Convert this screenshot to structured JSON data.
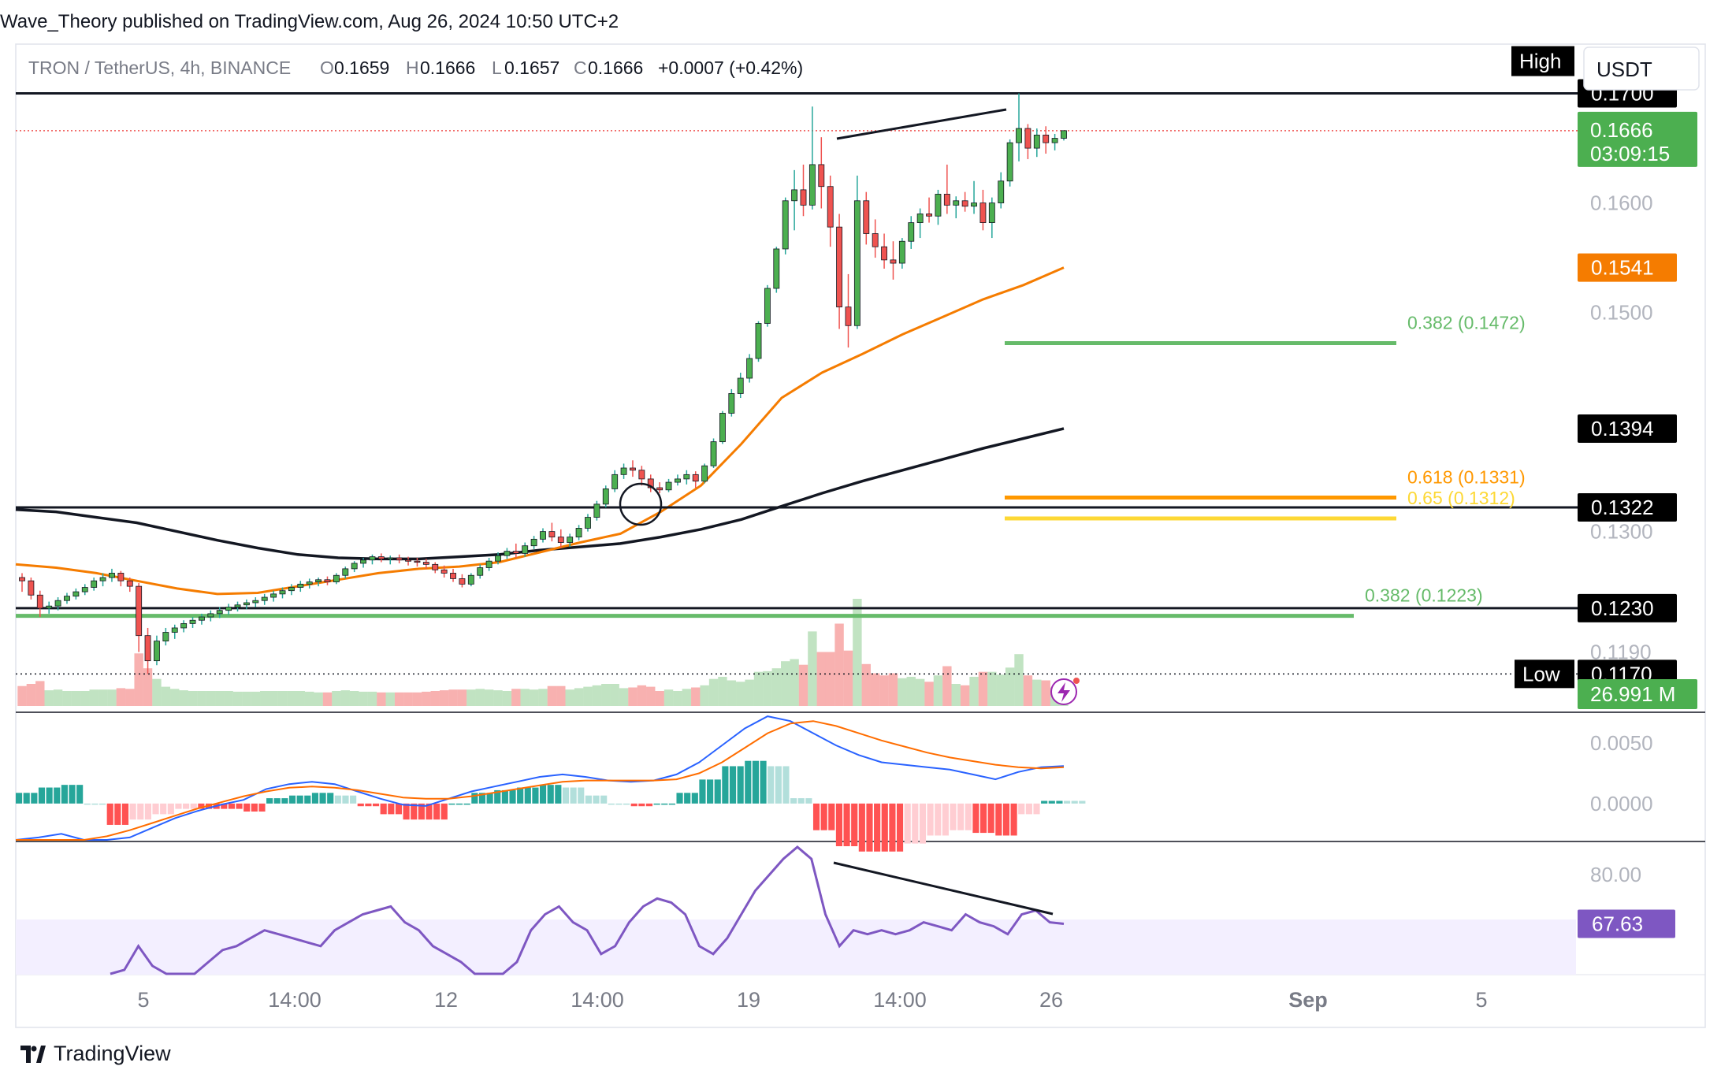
{
  "caption": "Wave_Theory published on TradingView.com, Aug 26, 2024 10:50 UTC+2",
  "symbol_line": {
    "symbol": "TRON / TetherUS, 4h, BINANCE",
    "o_label": "O",
    "o_value": "0.1659",
    "h_label": "H",
    "h_value": "0.1666",
    "l_label": "L",
    "l_value": "0.1657",
    "c_label": "C",
    "c_value": "0.1666",
    "change": "+0.0007 (+0.42%)"
  },
  "currency_button": "USDT",
  "brand": "TradingView",
  "colors": {
    "up": "#26a69a",
    "down": "#ef5350",
    "candle_up": "#4caf50",
    "ema_orange": "#f57c00",
    "ema_black": "#131722",
    "macd_line": "#2962ff",
    "signal_line": "#ff6d00",
    "rsi_line": "#7e57c2",
    "fib_green": "#66bb6a",
    "fib_orange": "#ff9800",
    "fib_yellow": "#ffeb3b"
  },
  "chart_data": [
    {
      "type": "candlestick",
      "title": "TRON / TetherUS, 4h, BINANCE",
      "x_ticks": [
        "5",
        "14:00",
        "12",
        "14:00",
        "19",
        "14:00",
        "26",
        "Sep",
        "5"
      ],
      "y_ticks": [
        "0.1600",
        "0.1500",
        "0.1300",
        "0.1190"
      ],
      "ylim": [
        0.1135,
        0.1745
      ],
      "candles": [
        [
          0.1258,
          0.1262,
          0.1245,
          0.1255
        ],
        [
          0.1255,
          0.1258,
          0.1238,
          0.1242
        ],
        [
          0.1242,
          0.1246,
          0.1222,
          0.123
        ],
        [
          0.123,
          0.1236,
          0.1225,
          0.1232
        ],
        [
          0.1232,
          0.124,
          0.1228,
          0.1237
        ],
        [
          0.1237,
          0.1244,
          0.1234,
          0.1241
        ],
        [
          0.1241,
          0.1248,
          0.1238,
          0.1245
        ],
        [
          0.1245,
          0.1252,
          0.1242,
          0.1249
        ],
        [
          0.1249,
          0.1258,
          0.1246,
          0.1255
        ],
        [
          0.1255,
          0.1262,
          0.125,
          0.1258
        ],
        [
          0.1258,
          0.1266,
          0.1254,
          0.1262
        ],
        [
          0.1262,
          0.1264,
          0.125,
          0.1255
        ],
        [
          0.1255,
          0.1258,
          0.1245,
          0.125
        ],
        [
          0.125,
          0.1253,
          0.119,
          0.1205
        ],
        [
          0.1205,
          0.1212,
          0.117,
          0.1182
        ],
        [
          0.1182,
          0.1205,
          0.1178,
          0.12
        ],
        [
          0.12,
          0.1212,
          0.1196,
          0.1208
        ],
        [
          0.1208,
          0.1215,
          0.1202,
          0.1212
        ],
        [
          0.1212,
          0.1219,
          0.1208,
          0.1216
        ],
        [
          0.1216,
          0.1222,
          0.1212,
          0.1219
        ],
        [
          0.1219,
          0.1225,
          0.1215,
          0.1222
        ],
        [
          0.1222,
          0.1228,
          0.1218,
          0.1225
        ],
        [
          0.1225,
          0.1231,
          0.1221,
          0.1228
        ],
        [
          0.1228,
          0.1234,
          0.1224,
          0.1231
        ],
        [
          0.1231,
          0.1236,
          0.1227,
          0.1233
        ],
        [
          0.1233,
          0.1238,
          0.1229,
          0.1235
        ],
        [
          0.1235,
          0.124,
          0.1231,
          0.1237
        ],
        [
          0.1237,
          0.1243,
          0.1233,
          0.124
        ],
        [
          0.124,
          0.1246,
          0.1236,
          0.1243
        ],
        [
          0.1243,
          0.1249,
          0.1239,
          0.1246
        ],
        [
          0.1246,
          0.1252,
          0.1242,
          0.1249
        ],
        [
          0.1249,
          0.1255,
          0.1245,
          0.1252
        ],
        [
          0.1252,
          0.1257,
          0.1248,
          0.1254
        ],
        [
          0.1254,
          0.1258,
          0.125,
          0.1256
        ],
        [
          0.1256,
          0.1259,
          0.1251,
          0.1254
        ],
        [
          0.1254,
          0.1262,
          0.1252,
          0.126
        ],
        [
          0.126,
          0.1268,
          0.1257,
          0.1266
        ],
        [
          0.1266,
          0.1273,
          0.1263,
          0.1271
        ],
        [
          0.1271,
          0.1276,
          0.1267,
          0.1274
        ],
        [
          0.1274,
          0.1279,
          0.127,
          0.1277
        ],
        [
          0.1277,
          0.128,
          0.1272,
          0.1275
        ],
        [
          0.1275,
          0.1278,
          0.127,
          0.1276
        ],
        [
          0.1276,
          0.1279,
          0.1271,
          0.1274
        ],
        [
          0.1274,
          0.1277,
          0.1269,
          0.1273
        ],
        [
          0.1273,
          0.1276,
          0.1268,
          0.1272
        ],
        [
          0.1272,
          0.1275,
          0.1266,
          0.127
        ],
        [
          0.127,
          0.1272,
          0.1262,
          0.1265
        ],
        [
          0.1265,
          0.1269,
          0.1258,
          0.1262
        ],
        [
          0.1262,
          0.1266,
          0.1254,
          0.1257
        ],
        [
          0.1257,
          0.1261,
          0.1249,
          0.1252
        ],
        [
          0.1252,
          0.1262,
          0.125,
          0.126
        ],
        [
          0.126,
          0.127,
          0.1257,
          0.1267
        ],
        [
          0.1267,
          0.1276,
          0.1264,
          0.1273
        ],
        [
          0.1273,
          0.1281,
          0.127,
          0.1278
        ],
        [
          0.1278,
          0.1285,
          0.1275,
          0.1282
        ],
        [
          0.1282,
          0.1289,
          0.1276,
          0.128
        ],
        [
          0.128,
          0.129,
          0.1277,
          0.1287
        ],
        [
          0.1287,
          0.1296,
          0.1284,
          0.1293
        ],
        [
          0.1293,
          0.1303,
          0.129,
          0.13
        ],
        [
          0.13,
          0.1308,
          0.1291,
          0.1295
        ],
        [
          0.1295,
          0.1302,
          0.1285,
          0.129
        ],
        [
          0.129,
          0.1298,
          0.1286,
          0.1295
        ],
        [
          0.1295,
          0.1306,
          0.1292,
          0.1303
        ],
        [
          0.1303,
          0.1316,
          0.13,
          0.1313
        ],
        [
          0.1313,
          0.1328,
          0.131,
          0.1325
        ],
        [
          0.1325,
          0.1342,
          0.1322,
          0.1339
        ],
        [
          0.1339,
          0.1356,
          0.1336,
          0.1352
        ],
        [
          0.1352,
          0.1362,
          0.1348,
          0.1358
        ],
        [
          0.1358,
          0.1365,
          0.135,
          0.1356
        ],
        [
          0.1356,
          0.136,
          0.1342,
          0.1348
        ],
        [
          0.1348,
          0.1352,
          0.1336,
          0.134
        ],
        [
          0.134,
          0.1345,
          0.1335,
          0.1338
        ],
        [
          0.1338,
          0.1348,
          0.1336,
          0.1345
        ],
        [
          0.1345,
          0.1352,
          0.1342,
          0.1348
        ],
        [
          0.1348,
          0.1356,
          0.1343,
          0.1352
        ],
        [
          0.1352,
          0.1355,
          0.134,
          0.1346
        ],
        [
          0.1346,
          0.1362,
          0.1344,
          0.136
        ],
        [
          0.136,
          0.1385,
          0.1358,
          0.1382
        ],
        [
          0.1382,
          0.141,
          0.138,
          0.1408
        ],
        [
          0.1408,
          0.143,
          0.1405,
          0.1426
        ],
        [
          0.1426,
          0.1445,
          0.1422,
          0.144
        ],
        [
          0.144,
          0.1462,
          0.1436,
          0.1458
        ],
        [
          0.1458,
          0.1492,
          0.1455,
          0.149
        ],
        [
          0.149,
          0.1525,
          0.1487,
          0.1522
        ],
        [
          0.1522,
          0.156,
          0.1518,
          0.1558
        ],
        [
          0.1558,
          0.1605,
          0.1553,
          0.1602
        ],
        [
          0.1602,
          0.163,
          0.1575,
          0.1612
        ],
        [
          0.1612,
          0.1635,
          0.1588,
          0.1598
        ],
        [
          0.1598,
          0.1688,
          0.1594,
          0.1635
        ],
        [
          0.1635,
          0.166,
          0.1595,
          0.1615
        ],
        [
          0.1615,
          0.1625,
          0.156,
          0.1578
        ],
        [
          0.1578,
          0.159,
          0.1485,
          0.1505
        ],
        [
          0.1505,
          0.1535,
          0.1468,
          0.1488
        ],
        [
          0.1488,
          0.1625,
          0.1485,
          0.1602
        ],
        [
          0.1602,
          0.161,
          0.1562,
          0.1572
        ],
        [
          0.1572,
          0.1585,
          0.155,
          0.156
        ],
        [
          0.156,
          0.1572,
          0.154,
          0.1548
        ],
        [
          0.1548,
          0.1565,
          0.153,
          0.1545
        ],
        [
          0.1545,
          0.1568,
          0.154,
          0.1565
        ],
        [
          0.1565,
          0.1588,
          0.1558,
          0.1582
        ],
        [
          0.1582,
          0.1595,
          0.1568,
          0.159
        ],
        [
          0.159,
          0.1605,
          0.1582,
          0.1588
        ],
        [
          0.1588,
          0.1612,
          0.158,
          0.1608
        ],
        [
          0.1608,
          0.1635,
          0.159,
          0.1598
        ],
        [
          0.1598,
          0.1606,
          0.1586,
          0.1602
        ],
        [
          0.1602,
          0.161,
          0.1592,
          0.1597
        ],
        [
          0.1597,
          0.162,
          0.159,
          0.16
        ],
        [
          0.16,
          0.1612,
          0.1575,
          0.1582
        ],
        [
          0.1582,
          0.1605,
          0.1568,
          0.16
        ],
        [
          0.16,
          0.1628,
          0.1595,
          0.162
        ],
        [
          0.162,
          0.1658,
          0.1615,
          0.1655
        ],
        [
          0.1655,
          0.17,
          0.1638,
          0.1668
        ],
        [
          0.1668,
          0.1672,
          0.164,
          0.165
        ],
        [
          0.165,
          0.1668,
          0.1642,
          0.1662
        ],
        [
          0.1662,
          0.167,
          0.1645,
          0.1655
        ],
        [
          0.1655,
          0.1663,
          0.1648,
          0.1659
        ],
        [
          0.1659,
          0.1666,
          0.1657,
          0.1666
        ]
      ],
      "ema_orange": [
        0.127,
        0.1267,
        0.1262,
        0.1255,
        0.1248,
        0.1243,
        0.1244,
        0.125,
        0.1256,
        0.1262,
        0.1266,
        0.1268,
        0.1272,
        0.1281,
        0.129,
        0.1298,
        0.1318,
        0.1342,
        0.138,
        0.1422,
        0.1445,
        0.1462,
        0.148,
        0.1496,
        0.1512,
        0.1525,
        0.1541
      ],
      "ema_black": [
        0.132,
        0.1318,
        0.1313,
        0.1308,
        0.13,
        0.1292,
        0.1285,
        0.1279,
        0.1276,
        0.1275,
        0.1275,
        0.1277,
        0.1279,
        0.1283,
        0.1286,
        0.1289,
        0.1295,
        0.1302,
        0.1311,
        0.1323,
        0.1335,
        0.1346,
        0.1356,
        0.1366,
        0.1376,
        0.1385,
        0.1394
      ],
      "levels": [
        {
          "label": "0.1700",
          "value": 0.17,
          "style": "black-box"
        },
        {
          "label": "0.1394",
          "value": 0.1394,
          "style": "black-box"
        },
        {
          "label": "0.1322",
          "value": 0.1322,
          "style": "black-box"
        },
        {
          "label": "0.1230",
          "value": 0.123,
          "style": "black-box"
        },
        {
          "label": "0.1170",
          "value": 0.117,
          "style": "black-box"
        },
        {
          "label": "0.1541",
          "value": 0.1541,
          "style": "orange-box"
        }
      ],
      "last_price": {
        "value": "0.1666",
        "countdown": "03:09:15"
      },
      "high_label": "High",
      "low_label": "Low",
      "fibs": [
        {
          "label": "0.382 (0.1472)",
          "value": 0.1472,
          "color": "#66bb6a"
        },
        {
          "label": "0.618 (0.1331)",
          "value": 0.1331,
          "color": "#ff9800"
        },
        {
          "label": "0.65 (0.1312)",
          "value": 0.1312,
          "color": "#fdd835"
        },
        {
          "label": "0.382 (0.1223)",
          "value": 0.1223,
          "color": "#66bb6a"
        }
      ],
      "volume_label": "26.991 M"
    },
    {
      "type": "bar",
      "title": "",
      "y_ticks": [
        "0.0050",
        "0.0000"
      ],
      "ylim": [
        -0.003,
        0.0074
      ],
      "macd": [
        -0.0032,
        -0.0028,
        -0.0025,
        -0.003,
        -0.0035,
        -0.0028,
        -0.002,
        -0.0012,
        -0.0006,
        -0.0001,
        0.0003,
        0.0012,
        0.0016,
        0.0018,
        0.0016,
        0.001,
        0.0004,
        -0.0001,
        -0.0002,
        0.0004,
        0.001,
        0.0014,
        0.0018,
        0.0022,
        0.0024,
        0.0022,
        0.0019,
        0.0018,
        0.0019,
        0.0024,
        0.0034,
        0.0048,
        0.0062,
        0.0072,
        0.0068,
        0.0058,
        0.0048,
        0.004,
        0.0034,
        0.0032,
        0.003,
        0.0028,
        0.0024,
        0.002,
        0.0026,
        0.003,
        0.0031
      ],
      "signal": [
        -0.0036,
        -0.0034,
        -0.0032,
        -0.003,
        -0.0027,
        -0.0022,
        -0.0016,
        -0.001,
        -0.0004,
        0.0001,
        0.0006,
        0.001,
        0.0013,
        0.0014,
        0.0013,
        0.0011,
        0.0008,
        0.0005,
        0.0004,
        0.0004,
        0.0006,
        0.0009,
        0.0012,
        0.0015,
        0.0018,
        0.0019,
        0.0019,
        0.0019,
        0.0019,
        0.002,
        0.0025,
        0.0034,
        0.0046,
        0.0058,
        0.0066,
        0.0068,
        0.0064,
        0.0058,
        0.0052,
        0.0047,
        0.0042,
        0.0038,
        0.0035,
        0.0032,
        0.003,
        0.0029,
        0.003
      ]
    },
    {
      "type": "line",
      "title": "",
      "y_ticks": [
        "80.00"
      ],
      "ylim": [
        55,
        88
      ],
      "rsi_label": "67.63",
      "rsi": [
        52,
        56,
        62,
        57,
        52,
        49,
        53,
        58,
        61,
        62,
        64,
        66,
        65,
        64,
        63,
        62,
        66,
        68,
        70,
        71,
        72,
        68,
        66,
        62,
        60,
        58,
        52,
        45,
        50,
        58,
        66,
        70,
        72,
        68,
        66,
        60,
        62,
        68,
        72,
        74,
        73,
        70,
        62,
        60,
        64,
        70,
        76,
        80,
        84,
        87,
        84,
        70,
        62,
        66,
        65,
        66,
        65,
        66,
        68,
        67,
        66,
        70,
        68,
        67,
        65,
        70,
        71,
        68,
        67.63
      ],
      "divergence_label": ""
    }
  ]
}
